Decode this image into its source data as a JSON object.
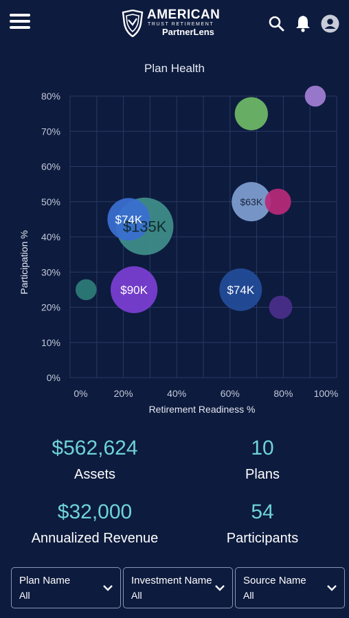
{
  "header": {
    "brand_line1": "AMERICAN",
    "brand_line2": "TRUST RETIREMENT",
    "brand_line3": "PartnerLens",
    "icons": [
      "menu-icon",
      "shield-logo-icon",
      "search-icon",
      "bell-icon",
      "user-avatar-icon"
    ]
  },
  "chart_data": {
    "type": "scatter",
    "variant": "bubble",
    "title": "Plan Health",
    "xlabel": "Retirement Readiness %",
    "ylabel": "Participation %",
    "xlim": [
      0,
      100
    ],
    "ylim": [
      0,
      80
    ],
    "x_ticks": [
      "0%",
      "20%",
      "40%",
      "60%",
      "80%",
      "100%"
    ],
    "y_ticks": [
      "0%",
      "10%",
      "20%",
      "30%",
      "40%",
      "50%",
      "60%",
      "70%",
      "80%"
    ],
    "grid": true,
    "points": [
      {
        "x": 28,
        "y": 43,
        "size": 135,
        "label": "$135K",
        "color": "#3f8f8a"
      },
      {
        "x": 22,
        "y": 45,
        "size": 74,
        "label": "$74K",
        "color": "#3a6fd1"
      },
      {
        "x": 24,
        "y": 25,
        "size": 90,
        "label": "$90K",
        "color": "#7b3fd4"
      },
      {
        "x": 6,
        "y": 25,
        "size": 18,
        "label": "",
        "color": "#2c7d78"
      },
      {
        "x": 68,
        "y": 50,
        "size": 63,
        "label": "$63K",
        "color": "#7f9fd1"
      },
      {
        "x": 78,
        "y": 50,
        "size": 28,
        "label": "",
        "color": "#b8297a"
      },
      {
        "x": 68,
        "y": 75,
        "size": 45,
        "label": "",
        "color": "#6fba66"
      },
      {
        "x": 92,
        "y": 80,
        "size": 18,
        "label": "",
        "color": "#a27fd6"
      },
      {
        "x": 64,
        "y": 25,
        "size": 74,
        "label": "$74K",
        "color": "#234d9a"
      },
      {
        "x": 79,
        "y": 20,
        "size": 22,
        "label": "",
        "color": "#4a2f8c"
      }
    ]
  },
  "stats": {
    "assets_value": "$562,624",
    "assets_label": "Assets",
    "plans_value": "10",
    "plans_label": "Plans",
    "revenue_value": "$32,000",
    "revenue_label": "Annualized Revenue",
    "participants_value": "54",
    "participants_label": "Participants"
  },
  "filters": [
    {
      "title": "Plan Name",
      "value": "All"
    },
    {
      "title": "Investment Name",
      "value": "All"
    },
    {
      "title": "Source Name",
      "value": "All"
    }
  ],
  "colors": {
    "background": "#0d1b3e",
    "accent": "#6fd3d8",
    "grid": "#2a3a64",
    "axis_text": "#c3c9da"
  }
}
